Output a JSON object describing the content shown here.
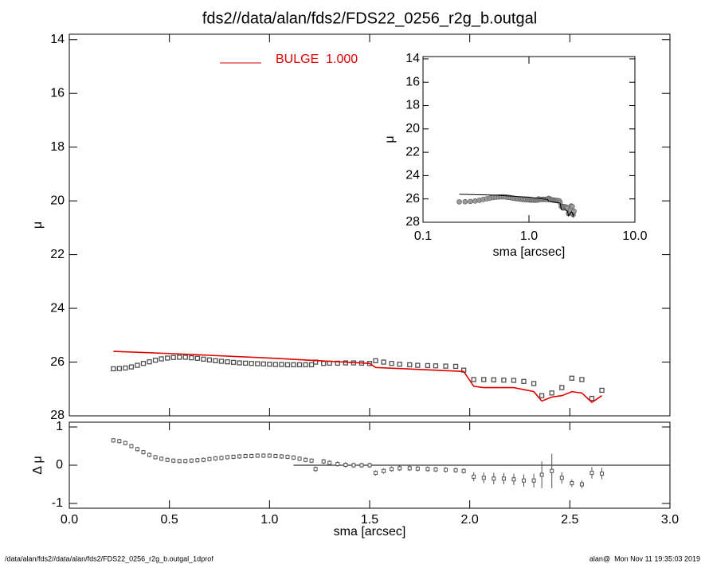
{
  "chart_data": [
    {
      "type": "scatter",
      "title": "fds2//data/alan/fds2/FDS22_0256_r2g_b.outgal",
      "ylabel": "μ",
      "xlim": [
        0,
        3
      ],
      "xticks": [
        {
          "value": 0,
          "label": "0.0"
        },
        {
          "value": 0.5,
          "label": "0.5"
        },
        {
          "value": 1,
          "label": "1.0"
        },
        {
          "value": 1.5,
          "label": "1.5"
        },
        {
          "value": 2,
          "label": "2.0"
        },
        {
          "value": 2.5,
          "label": "2.5"
        },
        {
          "value": 3,
          "label": "3.0"
        }
      ],
      "ylim": [
        28,
        13.8
      ],
      "yticks": [
        14,
        16,
        18,
        20,
        22,
        24,
        26,
        28
      ],
      "legend": "top-left",
      "series": [
        {
          "marker": "square",
          "color": "#505050",
          "x": [
            0.22,
            0.25,
            0.28,
            0.31,
            0.34,
            0.37,
            0.4,
            0.43,
            0.46,
            0.49,
            0.52,
            0.55,
            0.58,
            0.61,
            0.64,
            0.67,
            0.7,
            0.73,
            0.76,
            0.79,
            0.82,
            0.85,
            0.88,
            0.91,
            0.94,
            0.97,
            1.0,
            1.03,
            1.06,
            1.09,
            1.12,
            1.15,
            1.18,
            1.21,
            1.23,
            1.27,
            1.3,
            1.34,
            1.38,
            1.42,
            1.46,
            1.5,
            1.53,
            1.57,
            1.61,
            1.65,
            1.7,
            1.74,
            1.79,
            1.83,
            1.88,
            1.93,
            1.97,
            2.02,
            2.07,
            2.12,
            2.17,
            2.22,
            2.27,
            2.32,
            2.36,
            2.41,
            2.46,
            2.51,
            2.56,
            2.61,
            2.66
          ],
          "values": [
            26.25,
            26.24,
            26.22,
            26.18,
            26.12,
            26.05,
            25.99,
            25.93,
            25.88,
            25.85,
            25.83,
            25.82,
            25.82,
            25.84,
            25.86,
            25.89,
            25.92,
            25.95,
            25.97,
            25.99,
            26.01,
            26.03,
            26.04,
            26.05,
            26.06,
            26.07,
            26.08,
            26.09,
            26.09,
            26.1,
            26.1,
            26.1,
            26.1,
            26.1,
            26.0,
            26.05,
            26.04,
            26.04,
            26.03,
            26.03,
            26.04,
            26.05,
            25.95,
            26.0,
            26.05,
            26.08,
            26.1,
            26.12,
            26.13,
            26.14,
            26.15,
            26.16,
            26.3,
            26.65,
            26.65,
            26.66,
            26.67,
            26.68,
            26.72,
            26.8,
            27.25,
            27.15,
            26.95,
            26.6,
            26.65,
            27.35,
            27.05
          ]
        },
        {
          "name": "BULGE  1.000",
          "color": "#e00000",
          "x": [
            0.22,
            0.5,
            1.0,
            1.5,
            1.53,
            1.97,
            2.02,
            2.07,
            2.22,
            2.32,
            2.36,
            2.41,
            2.46,
            2.51,
            2.56,
            2.61,
            2.66
          ],
          "values": [
            25.6,
            25.68,
            25.85,
            26.05,
            26.2,
            26.35,
            26.9,
            26.95,
            26.95,
            27.1,
            27.45,
            27.3,
            27.25,
            27.1,
            27.15,
            27.5,
            27.25
          ]
        }
      ]
    },
    {
      "type": "errorbar",
      "xlabel": "sma [arcsec]",
      "ylabel": "Δ μ",
      "ylim": [
        -1.125,
        1.125
      ],
      "yticks": [
        1,
        0,
        -1
      ],
      "color": "#505050",
      "reference_line": {
        "y": 0,
        "x_start": 1.12
      },
      "values": [
        0.65,
        0.63,
        0.58,
        0.5,
        0.42,
        0.34,
        0.27,
        0.21,
        0.17,
        0.14,
        0.12,
        0.11,
        0.11,
        0.12,
        0.13,
        0.14,
        0.16,
        0.18,
        0.19,
        0.21,
        0.22,
        0.23,
        0.24,
        0.24,
        0.25,
        0.25,
        0.25,
        0.24,
        0.23,
        0.22,
        0.2,
        0.17,
        0.14,
        0.12,
        -0.1,
        0.1,
        0.06,
        0.03,
        0.01,
        0.0,
        0.0,
        0.0,
        -0.2,
        -0.15,
        -0.1,
        -0.08,
        -0.08,
        -0.09,
        -0.1,
        -0.11,
        -0.12,
        -0.13,
        -0.15,
        -0.3,
        -0.33,
        -0.35,
        -0.35,
        -0.37,
        -0.4,
        -0.4,
        -0.25,
        -0.15,
        -0.33,
        -0.47,
        -0.5,
        -0.2,
        -0.22
      ],
      "errors": [
        0.06,
        0.06,
        0.06,
        0.06,
        0.06,
        0.06,
        0.06,
        0.06,
        0.06,
        0.06,
        0.06,
        0.06,
        0.06,
        0.06,
        0.06,
        0.06,
        0.06,
        0.06,
        0.06,
        0.06,
        0.06,
        0.06,
        0.06,
        0.06,
        0.06,
        0.06,
        0.06,
        0.06,
        0.06,
        0.06,
        0.06,
        0.06,
        0.06,
        0.06,
        0.07,
        0.07,
        0.07,
        0.07,
        0.07,
        0.07,
        0.07,
        0.07,
        0.07,
        0.07,
        0.07,
        0.07,
        0.07,
        0.07,
        0.07,
        0.07,
        0.07,
        0.07,
        0.07,
        0.12,
        0.14,
        0.15,
        0.15,
        0.15,
        0.16,
        0.18,
        0.35,
        0.45,
        0.15,
        0.1,
        0.1,
        0.15,
        0.15
      ]
    },
    {
      "type": "line",
      "xlabel": "sma [arcsec]",
      "ylabel": "μ",
      "xscale": "log",
      "xlim": [
        0.1,
        10
      ],
      "xticks": [
        {
          "value": 0.1,
          "label": "0.1"
        },
        {
          "value": 1,
          "label": "1.0"
        },
        {
          "value": 10,
          "label": "10.0"
        }
      ],
      "ylim": [
        28,
        13.8
      ],
      "yticks": [
        14,
        16,
        18,
        20,
        22,
        24,
        26,
        28
      ],
      "point_color": "#9a9a9a",
      "line_color": "#000000"
    }
  ],
  "footer": {
    "left": "/data/alan/fds2//data/alan/fds2/FDS22_0256_r2g_b.outgal_1dprof",
    "right": "alan@  Mon Nov 11 19:35:03 2019"
  }
}
